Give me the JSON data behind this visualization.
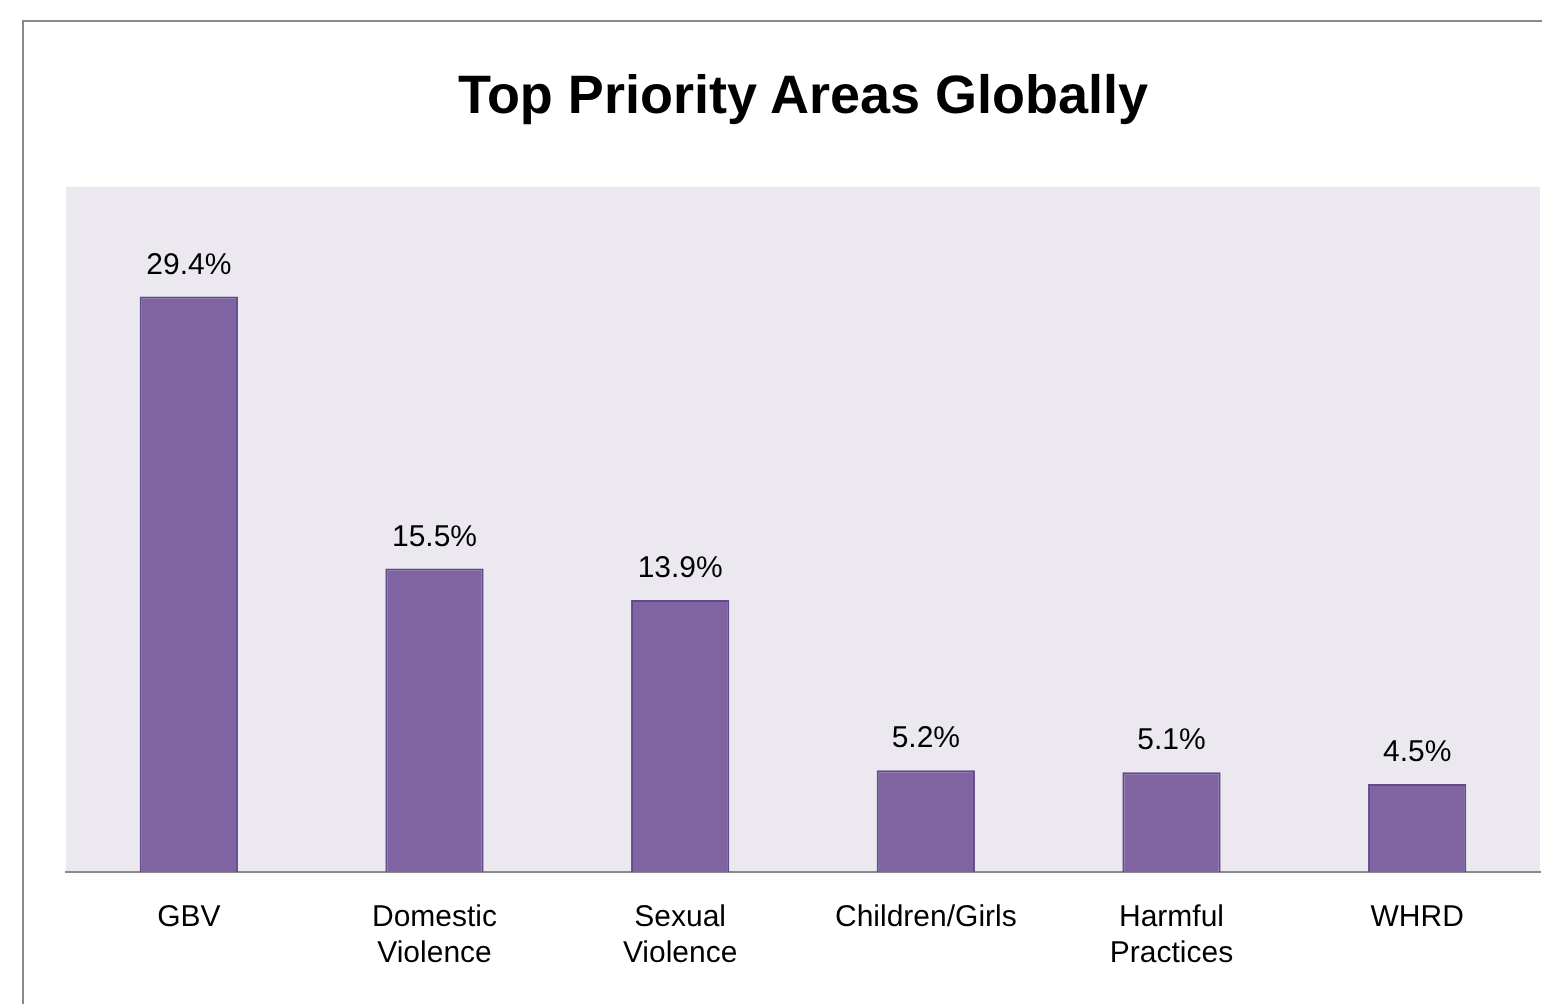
{
  "chart_data": {
    "type": "bar",
    "title": "Top Priority Areas Globally",
    "categories": [
      "GBV",
      "Domestic Violence",
      "Sexual Violence",
      "Children/Girls",
      "Harmful Practices",
      "WHRD"
    ],
    "values": [
      29.4,
      15.5,
      13.9,
      5.2,
      5.1,
      4.5
    ],
    "value_labels": [
      "29.4%",
      "15.5%",
      "13.9%",
      "5.2%",
      "5.1%",
      "4.5%"
    ],
    "color": "#8064a2",
    "ylim": [
      0,
      35
    ],
    "tick_labels": "x",
    "grid": false,
    "legend": false
  }
}
